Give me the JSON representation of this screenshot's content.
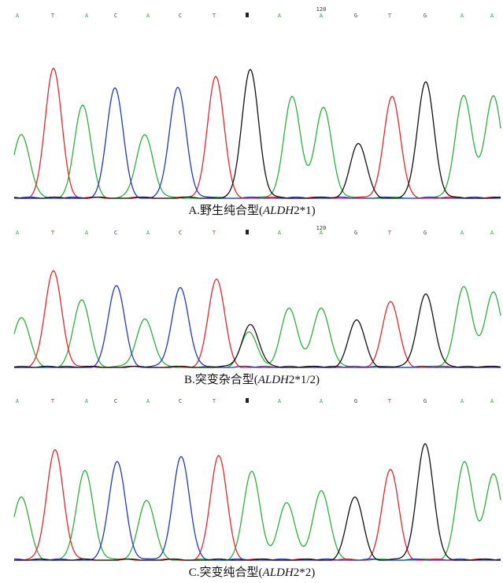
{
  "base_colors": {
    "A": "#2fae3f",
    "T": "#e3262e",
    "C": "#2438b8",
    "G": "#444444"
  },
  "panels": [
    {
      "bases": [
        "A",
        "T",
        "A",
        "C",
        "A",
        "C",
        "T",
        "A",
        "A",
        "G",
        "T",
        "G",
        "A",
        "A"
      ],
      "position_label": "120",
      "caption": {
        "prefix": "A.野生纯合型(",
        "italic": "ALDH",
        "suffix": "2*1)"
      }
    },
    {
      "bases": [
        "A",
        "T",
        "A",
        "C",
        "A",
        "C",
        "T",
        "A",
        "A",
        "G",
        "T",
        "G",
        "A",
        "A"
      ],
      "position_label": "120",
      "caption": {
        "prefix": "B.突变杂合型(",
        "italic": "ALDH",
        "suffix": "2*1/2)"
      }
    },
    {
      "bases": [
        "A",
        "T",
        "A",
        "C",
        "A",
        "C",
        "T",
        "A",
        "A",
        "G",
        "T",
        "G",
        "A",
        "A"
      ],
      "caption": {
        "prefix": "C.突变纯合型(",
        "italic": "ALDH",
        "suffix": "2*2)"
      }
    }
  ]
}
